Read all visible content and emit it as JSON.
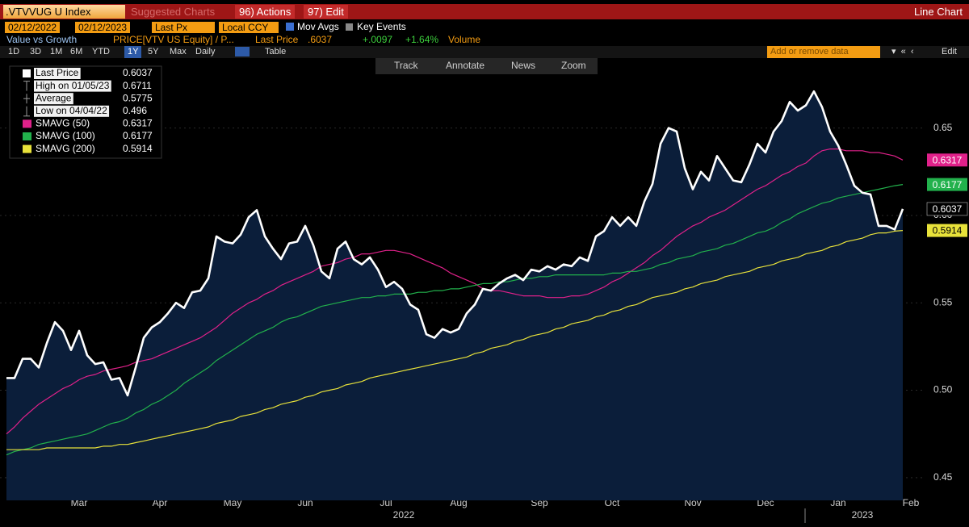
{
  "header": {
    "ticker": ".VTVVUG U Index",
    "suggested": "Suggested Charts",
    "actions": "96) Actions",
    "edit": "97) Edit",
    "view": "Line Chart"
  },
  "controls": {
    "start_date": "02/12/2022",
    "end_date": "02/12/2023",
    "field": "Last Px",
    "currency": "Local CCY",
    "mov_avgs": "Mov Avgs",
    "key_events": "Key Events"
  },
  "info": {
    "title": "Value vs Growth",
    "security": "PRICE[VTV US Equity] /   P...",
    "last_label": "Last Price",
    "last": ".6037",
    "change": "+.0097",
    "change_pct": "+1.64%",
    "volume": "Volume"
  },
  "ranges": [
    "1D",
    "3D",
    "1M",
    "6M",
    "YTD",
    "1Y",
    "5Y",
    "Max"
  ],
  "frequency": "Daily",
  "table": "Table",
  "add_data": "Add or remove data",
  "edit": "Edit",
  "chart_toolbar": [
    "Track",
    "Annotate",
    "News",
    "Zoom"
  ],
  "chart_data": {
    "type": "line",
    "categories": [
      null,
      null,
      null,
      null,
      null,
      null,
      null,
      null,
      null,
      "Mar",
      null,
      null,
      null,
      null,
      null,
      null,
      null,
      null,
      null,
      "Apr",
      null,
      null,
      null,
      null,
      null,
      null,
      null,
      null,
      "May",
      null,
      null,
      null,
      null,
      null,
      null,
      null,
      null,
      "Jun",
      null,
      null,
      null,
      null,
      null,
      null,
      null,
      null,
      null,
      "Jul",
      null,
      null,
      null,
      null,
      null,
      null,
      null,
      null,
      "Aug",
      null,
      null,
      null,
      null,
      null,
      null,
      null,
      null,
      null,
      "Sep",
      null,
      null,
      null,
      null,
      null,
      null,
      null,
      null,
      "Oct",
      null,
      null,
      null,
      null,
      null,
      null,
      null,
      null,
      null,
      "Nov",
      null,
      null,
      null,
      null,
      null,
      null,
      null,
      null,
      "Dec",
      null,
      null,
      null,
      null,
      null,
      null,
      null,
      null,
      "Jan",
      null,
      null,
      null,
      null,
      null,
      null,
      null,
      null,
      "Feb"
    ],
    "x_years": [
      "2022",
      "2023"
    ],
    "series": [
      {
        "name": "Last Price",
        "color": "#ffffff",
        "area_color": "#0b1e3a",
        "values": [
          0.507,
          0.507,
          0.518,
          0.518,
          0.513,
          0.527,
          0.539,
          0.534,
          0.523,
          0.534,
          0.52,
          0.515,
          0.516,
          0.506,
          0.507,
          0.497,
          0.513,
          0.53,
          0.536,
          0.539,
          0.544,
          0.55,
          0.547,
          0.556,
          0.557,
          0.564,
          0.588,
          0.585,
          0.584,
          0.589,
          0.599,
          0.603,
          0.588,
          0.581,
          0.575,
          0.584,
          0.585,
          0.594,
          0.583,
          0.568,
          0.564,
          0.581,
          0.585,
          0.575,
          0.572,
          0.576,
          0.569,
          0.559,
          0.562,
          0.558,
          0.549,
          0.546,
          0.532,
          0.53,
          0.535,
          0.533,
          0.535,
          0.544,
          0.549,
          0.558,
          0.557,
          0.561,
          0.564,
          0.566,
          0.563,
          0.569,
          0.568,
          0.571,
          0.569,
          0.572,
          0.571,
          0.576,
          0.574,
          0.588,
          0.591,
          0.599,
          0.594,
          0.599,
          0.594,
          0.608,
          0.618,
          0.641,
          0.65,
          0.648,
          0.627,
          0.615,
          0.625,
          0.62,
          0.634,
          0.627,
          0.62,
          0.619,
          0.629,
          0.641,
          0.636,
          0.648,
          0.654,
          0.665,
          0.66,
          0.663,
          0.671,
          0.662,
          0.648,
          0.64,
          0.629,
          0.617,
          0.613,
          0.612,
          0.594,
          0.594,
          0.592,
          0.6037,
          null
        ]
      },
      {
        "name": "SMAVG (50)",
        "color": "#e0218a",
        "values": [
          0.475,
          0.479,
          0.484,
          0.488,
          0.492,
          0.495,
          0.498,
          0.501,
          0.503,
          0.506,
          0.508,
          0.509,
          0.511,
          0.512,
          0.513,
          0.514,
          0.516,
          0.517,
          0.518,
          0.52,
          0.522,
          0.524,
          0.526,
          0.528,
          0.53,
          0.533,
          0.536,
          0.54,
          0.544,
          0.547,
          0.55,
          0.552,
          0.555,
          0.557,
          0.56,
          0.562,
          0.564,
          0.566,
          0.568,
          0.571,
          0.572,
          0.573,
          0.575,
          0.576,
          0.578,
          0.578,
          0.579,
          0.58,
          0.58,
          0.579,
          0.578,
          0.576,
          0.574,
          0.572,
          0.57,
          0.567,
          0.565,
          0.563,
          0.561,
          0.558,
          0.557,
          0.557,
          0.556,
          0.555,
          0.554,
          0.554,
          0.554,
          0.553,
          0.553,
          0.553,
          0.554,
          0.554,
          0.555,
          0.557,
          0.559,
          0.562,
          0.564,
          0.567,
          0.57,
          0.573,
          0.577,
          0.58,
          0.584,
          0.588,
          0.591,
          0.594,
          0.596,
          0.599,
          0.601,
          0.603,
          0.606,
          0.609,
          0.612,
          0.615,
          0.617,
          0.62,
          0.623,
          0.625,
          0.628,
          0.63,
          0.634,
          0.637,
          0.638,
          0.638,
          0.637,
          0.637,
          0.637,
          0.636,
          0.636,
          0.635,
          0.634,
          0.6317,
          null
        ]
      },
      {
        "name": "SMAVG (100)",
        "color": "#22b14c",
        "values": [
          0.463,
          0.465,
          0.466,
          0.467,
          0.469,
          0.47,
          0.471,
          0.472,
          0.473,
          0.474,
          0.475,
          0.477,
          0.479,
          0.481,
          0.482,
          0.484,
          0.487,
          0.489,
          0.492,
          0.494,
          0.497,
          0.5,
          0.504,
          0.507,
          0.51,
          0.513,
          0.517,
          0.52,
          0.523,
          0.526,
          0.529,
          0.532,
          0.534,
          0.536,
          0.539,
          0.541,
          0.542,
          0.544,
          0.546,
          0.548,
          0.549,
          0.55,
          0.551,
          0.552,
          0.553,
          0.553,
          0.554,
          0.554,
          0.555,
          0.555,
          0.555,
          0.556,
          0.556,
          0.557,
          0.557,
          0.558,
          0.558,
          0.559,
          0.56,
          0.561,
          0.561,
          0.562,
          0.562,
          0.563,
          0.564,
          0.564,
          0.565,
          0.565,
          0.566,
          0.566,
          0.566,
          0.566,
          0.566,
          0.566,
          0.566,
          0.567,
          0.567,
          0.568,
          0.568,
          0.569,
          0.57,
          0.572,
          0.573,
          0.575,
          0.576,
          0.577,
          0.579,
          0.58,
          0.581,
          0.583,
          0.584,
          0.586,
          0.588,
          0.59,
          0.591,
          0.593,
          0.596,
          0.598,
          0.601,
          0.603,
          0.605,
          0.607,
          0.608,
          0.61,
          0.611,
          0.612,
          0.613,
          0.614,
          0.615,
          0.616,
          0.617,
          0.6177,
          null
        ]
      },
      {
        "name": "SMAVG (200)",
        "color": "#e8e23a",
        "values": [
          0.466,
          0.466,
          0.466,
          0.466,
          0.466,
          0.467,
          0.467,
          0.467,
          0.467,
          0.467,
          0.467,
          0.467,
          0.468,
          0.468,
          0.469,
          0.469,
          0.47,
          0.471,
          0.472,
          0.473,
          0.474,
          0.475,
          0.476,
          0.477,
          0.478,
          0.479,
          0.481,
          0.482,
          0.483,
          0.485,
          0.486,
          0.487,
          0.489,
          0.49,
          0.492,
          0.493,
          0.494,
          0.496,
          0.497,
          0.499,
          0.5,
          0.501,
          0.503,
          0.504,
          0.505,
          0.507,
          0.508,
          0.509,
          0.51,
          0.511,
          0.512,
          0.513,
          0.514,
          0.515,
          0.516,
          0.517,
          0.518,
          0.519,
          0.521,
          0.522,
          0.524,
          0.525,
          0.526,
          0.528,
          0.529,
          0.531,
          0.532,
          0.533,
          0.535,
          0.536,
          0.538,
          0.539,
          0.54,
          0.542,
          0.543,
          0.545,
          0.546,
          0.548,
          0.549,
          0.551,
          0.553,
          0.554,
          0.555,
          0.556,
          0.558,
          0.559,
          0.561,
          0.562,
          0.563,
          0.565,
          0.566,
          0.567,
          0.568,
          0.57,
          0.571,
          0.572,
          0.574,
          0.575,
          0.576,
          0.578,
          0.579,
          0.58,
          0.582,
          0.583,
          0.585,
          0.586,
          0.587,
          0.589,
          0.59,
          0.59,
          0.591,
          0.5914,
          null
        ]
      }
    ],
    "stats": [
      {
        "label": "High on 01/05/23",
        "value": 0.6711
      },
      {
        "label": "Average",
        "value": 0.5775
      },
      {
        "label": "Low on 04/04/22",
        "value": 0.496
      }
    ],
    "ylim": [
      0.437,
      0.69
    ],
    "yticks": [
      0.45,
      {
        "value": 0.5,
        "label": "0.50"
      },
      0.55,
      {
        "value": 0.6,
        "label": "0.60"
      },
      0.65
    ],
    "grid": true
  }
}
